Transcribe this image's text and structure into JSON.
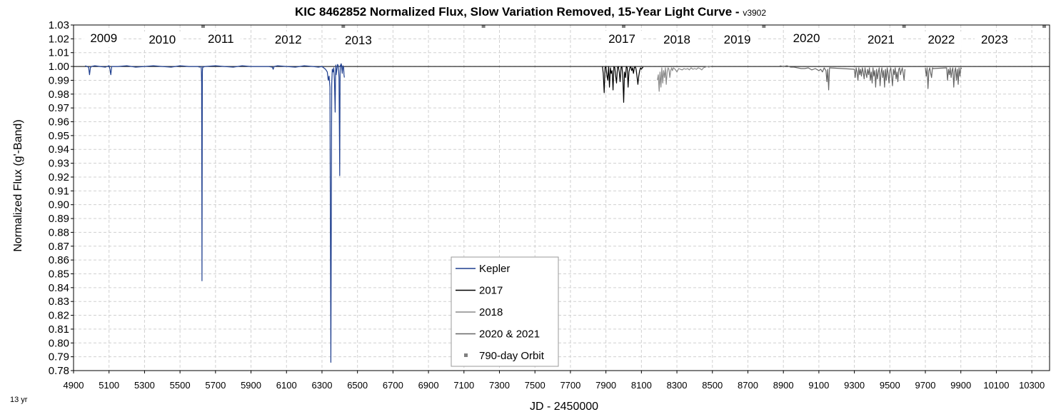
{
  "chart_data": {
    "type": "line",
    "title": "KIC 8462852 Normalized Flux, Slow Variation Removed, 15-Year Light Curve - ",
    "version": "v3902",
    "xlabel": "JD - 2450000",
    "ylabel": "Normalized Flux (g'-Band)",
    "corner_note": "13 yr",
    "xlim": [
      4900,
      10400
    ],
    "ylim": [
      0.78,
      1.03
    ],
    "x_ticks": [
      4900,
      5100,
      5300,
      5500,
      5700,
      5900,
      6100,
      6300,
      6500,
      6700,
      6900,
      7100,
      7300,
      7500,
      7700,
      7900,
      8100,
      8300,
      8500,
      8700,
      8900,
      9100,
      9300,
      9500,
      9700,
      9900,
      10100,
      10300
    ],
    "y_ticks": [
      "1.03",
      "1.02",
      "1.01",
      "1.00",
      "0.99",
      "0.98",
      "0.97",
      "0.96",
      "0.95",
      "0.94",
      "0.93",
      "0.92",
      "0.91",
      "0.90",
      "0.89",
      "0.88",
      "0.87",
      "0.86",
      "0.85",
      "0.84",
      "0.83",
      "0.82",
      "0.81",
      "0.80",
      "0.79",
      "0.78"
    ],
    "grid": true,
    "reference_line": 1.0,
    "legend_position": "bottom-center",
    "year_labels": [
      {
        "text": "2009",
        "x": 5070,
        "y": 1.0175
      },
      {
        "text": "2010",
        "x": 5400,
        "y": 1.0165
      },
      {
        "text": "2011",
        "x": 5730,
        "y": 1.017
      },
      {
        "text": "2012",
        "x": 6110,
        "y": 1.0165
      },
      {
        "text": "2013",
        "x": 6505,
        "y": 1.016
      },
      {
        "text": "2017",
        "x": 7990,
        "y": 1.017
      },
      {
        "text": "2018",
        "x": 8300,
        "y": 1.0165
      },
      {
        "text": "2019",
        "x": 8640,
        "y": 1.0165
      },
      {
        "text": "2020",
        "x": 9030,
        "y": 1.0175
      },
      {
        "text": "2021",
        "x": 9450,
        "y": 1.0165
      },
      {
        "text": "2022",
        "x": 9790,
        "y": 1.0165
      },
      {
        "text": "2023",
        "x": 10090,
        "y": 1.0165
      }
    ],
    "series": [
      {
        "name": "Kepler",
        "color": "#1f3f8f",
        "x": [
          4966,
          4975,
          4985,
          4990,
          4995,
          5000,
          5020,
          5050,
          5080,
          5100,
          5105,
          5110,
          5115,
          5150,
          5200,
          5250,
          5300,
          5350,
          5400,
          5450,
          5500,
          5550,
          5600,
          5610,
          5618,
          5620,
          5622,
          5624,
          5626,
          5628,
          5632,
          5640,
          5700,
          5750,
          5800,
          5850,
          5900,
          5950,
          6000,
          6020,
          6025,
          6030,
          6050,
          6100,
          6150,
          6200,
          6250,
          6280,
          6300,
          6310,
          6320,
          6330,
          6335,
          6340,
          6345,
          6350,
          6355,
          6358,
          6362,
          6366,
          6370,
          6374,
          6376,
          6378,
          6380,
          6384,
          6388,
          6392,
          6396,
          6400,
          6402,
          6404,
          6406,
          6408,
          6410,
          6414,
          6418,
          6422,
          6424,
          6426
        ],
        "y": [
          1.0005,
          1.0,
          0.9995,
          0.994,
          0.999,
          1.0,
          1.0005,
          1.0,
          0.9995,
          1.0005,
          0.998,
          0.994,
          1.0,
          1.0,
          1.0005,
          0.9995,
          1.0,
          1.0005,
          1.0,
          0.9995,
          1.0005,
          1.0,
          1.0,
          0.9995,
          1.0,
          0.998,
          0.988,
          0.845,
          0.996,
          1.0,
          0.9995,
          1.0,
          1.0005,
          1.0,
          0.9995,
          1.0005,
          1.0,
          1.0,
          1.0,
          0.9995,
          0.998,
          1.0,
          1.0005,
          1.0,
          0.9995,
          1.0005,
          1.0,
          0.9995,
          1.0,
          0.999,
          0.998,
          0.996,
          0.99,
          0.993,
          0.985,
          0.786,
          0.987,
          0.998,
          0.996,
          0.999,
          0.99,
          0.967,
          0.992,
          1.001,
          0.994,
          0.998,
          1.0015,
          1.0005,
          0.992,
          0.921,
          0.995,
          1.001,
          1.0,
          1.002,
          1.001,
          0.995,
          1.0005,
          0.999,
          0.994,
          0.992
        ]
      },
      {
        "name": "2017",
        "color": "#000000",
        "x": [
          7880,
          7885,
          7890,
          7895,
          7900,
          7905,
          7910,
          7915,
          7920,
          7925,
          7930,
          7935,
          7940,
          7945,
          7950,
          7955,
          7960,
          7965,
          7970,
          7975,
          7980,
          7985,
          7990,
          7995,
          8000,
          8005,
          8010,
          8015,
          8020,
          8025,
          8030,
          8035,
          8040,
          8045,
          8050,
          8055,
          8060,
          8065,
          8070,
          8075,
          8080,
          8085,
          8090,
          8095,
          8100,
          8105,
          8110
        ],
        "y": [
          1.0,
          0.995,
          0.981,
          0.999,
          1.0,
          0.994,
          0.99,
          1.0,
          0.985,
          0.999,
          0.995,
          0.997,
          0.983,
          1.0,
          0.999,
          0.993,
          0.988,
          0.999,
          1.0,
          0.996,
          0.989,
          0.999,
          1.0,
          0.994,
          0.974,
          0.996,
          0.992,
          1.0,
          0.999,
          0.985,
          0.996,
          0.999,
          1.0,
          0.997,
          0.999,
          0.995,
          0.999,
          1.0,
          0.998,
          0.993,
          0.987,
          0.993,
          0.997,
          0.999,
          0.998,
          0.999,
          0.9995
        ]
      },
      {
        "name": "2018",
        "color": "#8a8a8a",
        "x": [
          8190,
          8195,
          8200,
          8205,
          8210,
          8215,
          8220,
          8225,
          8230,
          8235,
          8240,
          8245,
          8250,
          8255,
          8260,
          8265,
          8270,
          8275,
          8280,
          8290,
          8300,
          8310,
          8320,
          8330,
          8340,
          8350,
          8360,
          8370,
          8380,
          8390,
          8400,
          8410,
          8420,
          8430,
          8440,
          8450,
          8460,
          8470,
          8480,
          8490
        ],
        "y": [
          0.99,
          0.994,
          0.982,
          0.996,
          0.985,
          0.999,
          0.988,
          0.997,
          0.992,
          0.999,
          0.987,
          0.996,
          0.999,
          0.998,
          0.992,
          0.997,
          0.999,
          0.997,
          0.999,
          0.998,
          0.996,
          0.9985,
          0.998,
          0.9975,
          0.9985,
          0.998,
          0.9985,
          0.9975,
          0.999,
          0.998,
          0.9985,
          0.998,
          0.999,
          0.9985,
          0.9975,
          0.999,
          0.9995,
          1.0,
          0.9995,
          1.0
        ]
      },
      {
        "name": "2020 & 2021",
        "color": "#666666",
        "x": [
          8880,
          8900,
          8920,
          8940,
          8960,
          8980,
          9000,
          9020,
          9040,
          9060,
          9080,
          9100,
          9110,
          9120,
          9130,
          9140,
          9145,
          9150,
          9155,
          9160,
          9300,
          9305,
          9310,
          9315,
          9320,
          9325,
          9330,
          9335,
          9340,
          9345,
          9350,
          9355,
          9360,
          9365,
          9370,
          9375,
          9380,
          9385,
          9390,
          9395,
          9400,
          9405,
          9410,
          9415,
          9420,
          9425,
          9430,
          9435,
          9440,
          9445,
          9450,
          9455,
          9460,
          9465,
          9470,
          9475,
          9480,
          9485,
          9490,
          9495,
          9500,
          9505,
          9510,
          9515,
          9520,
          9525,
          9530,
          9535,
          9540,
          9545,
          9550,
          9555,
          9560,
          9565,
          9570,
          9575,
          9580,
          9585
        ],
        "y": [
          1.0005,
          1.0,
          1.0005,
          0.9995,
          0.9995,
          0.999,
          0.9985,
          0.9985,
          0.999,
          0.9975,
          0.9985,
          0.997,
          0.998,
          0.996,
          0.999,
          0.997,
          0.989,
          0.998,
          0.983,
          0.999,
          0.998,
          0.992,
          0.999,
          0.996,
          0.99,
          0.999,
          0.994,
          0.998,
          0.993,
          0.999,
          0.996,
          0.991,
          0.999,
          0.995,
          0.992,
          0.998,
          0.994,
          0.999,
          0.99,
          0.996,
          0.988,
          0.999,
          0.993,
          0.997,
          0.985,
          0.998,
          0.991,
          0.996,
          0.999,
          0.986,
          0.995,
          0.999,
          0.992,
          0.997,
          0.985,
          0.998,
          0.99,
          0.999,
          0.995,
          0.988,
          0.997,
          0.999,
          0.993,
          0.986,
          0.998,
          0.994,
          0.999,
          0.991,
          0.996,
          0.989,
          0.998,
          0.999,
          0.994,
          0.997,
          0.999,
          0.995,
          0.99,
          0.998
        ]
      },
      {
        "name": "2020 & 2021",
        "color": "#666666",
        "x": [
          9700,
          9705,
          9710,
          9715,
          9720,
          9725,
          9730,
          9735,
          9740,
          9745,
          9820,
          9825,
          9830,
          9835,
          9840,
          9845,
          9850,
          9855,
          9860,
          9865,
          9870,
          9875,
          9880,
          9885,
          9890,
          9895,
          9900,
          9905
        ],
        "y": [
          0.999,
          0.993,
          0.999,
          0.984,
          0.997,
          0.999,
          0.995,
          0.992,
          0.999,
          0.9985,
          0.999,
          0.99,
          0.998,
          0.994,
          0.999,
          0.992,
          0.997,
          0.999,
          0.985,
          0.996,
          0.999,
          0.99,
          0.998,
          0.987,
          0.999,
          0.993,
          0.999,
          0.9985
        ]
      }
    ],
    "orbit_markers": {
      "name": "790-day Orbit",
      "color": "#808080",
      "x": [
        5630,
        6420,
        7210,
        8000,
        8790,
        9580,
        10370
      ],
      "y": 1.03
    },
    "legend": [
      {
        "label": "Kepler",
        "color": "#1f3f8f",
        "marker": "line"
      },
      {
        "label": "2017",
        "color": "#000000",
        "marker": "line"
      },
      {
        "label": "2018",
        "color": "#8a8a8a",
        "marker": "line"
      },
      {
        "label": "2020 & 2021",
        "color": "#666666",
        "marker": "line"
      },
      {
        "label": "790-day Orbit",
        "color": "#808080",
        "marker": "square"
      }
    ]
  }
}
